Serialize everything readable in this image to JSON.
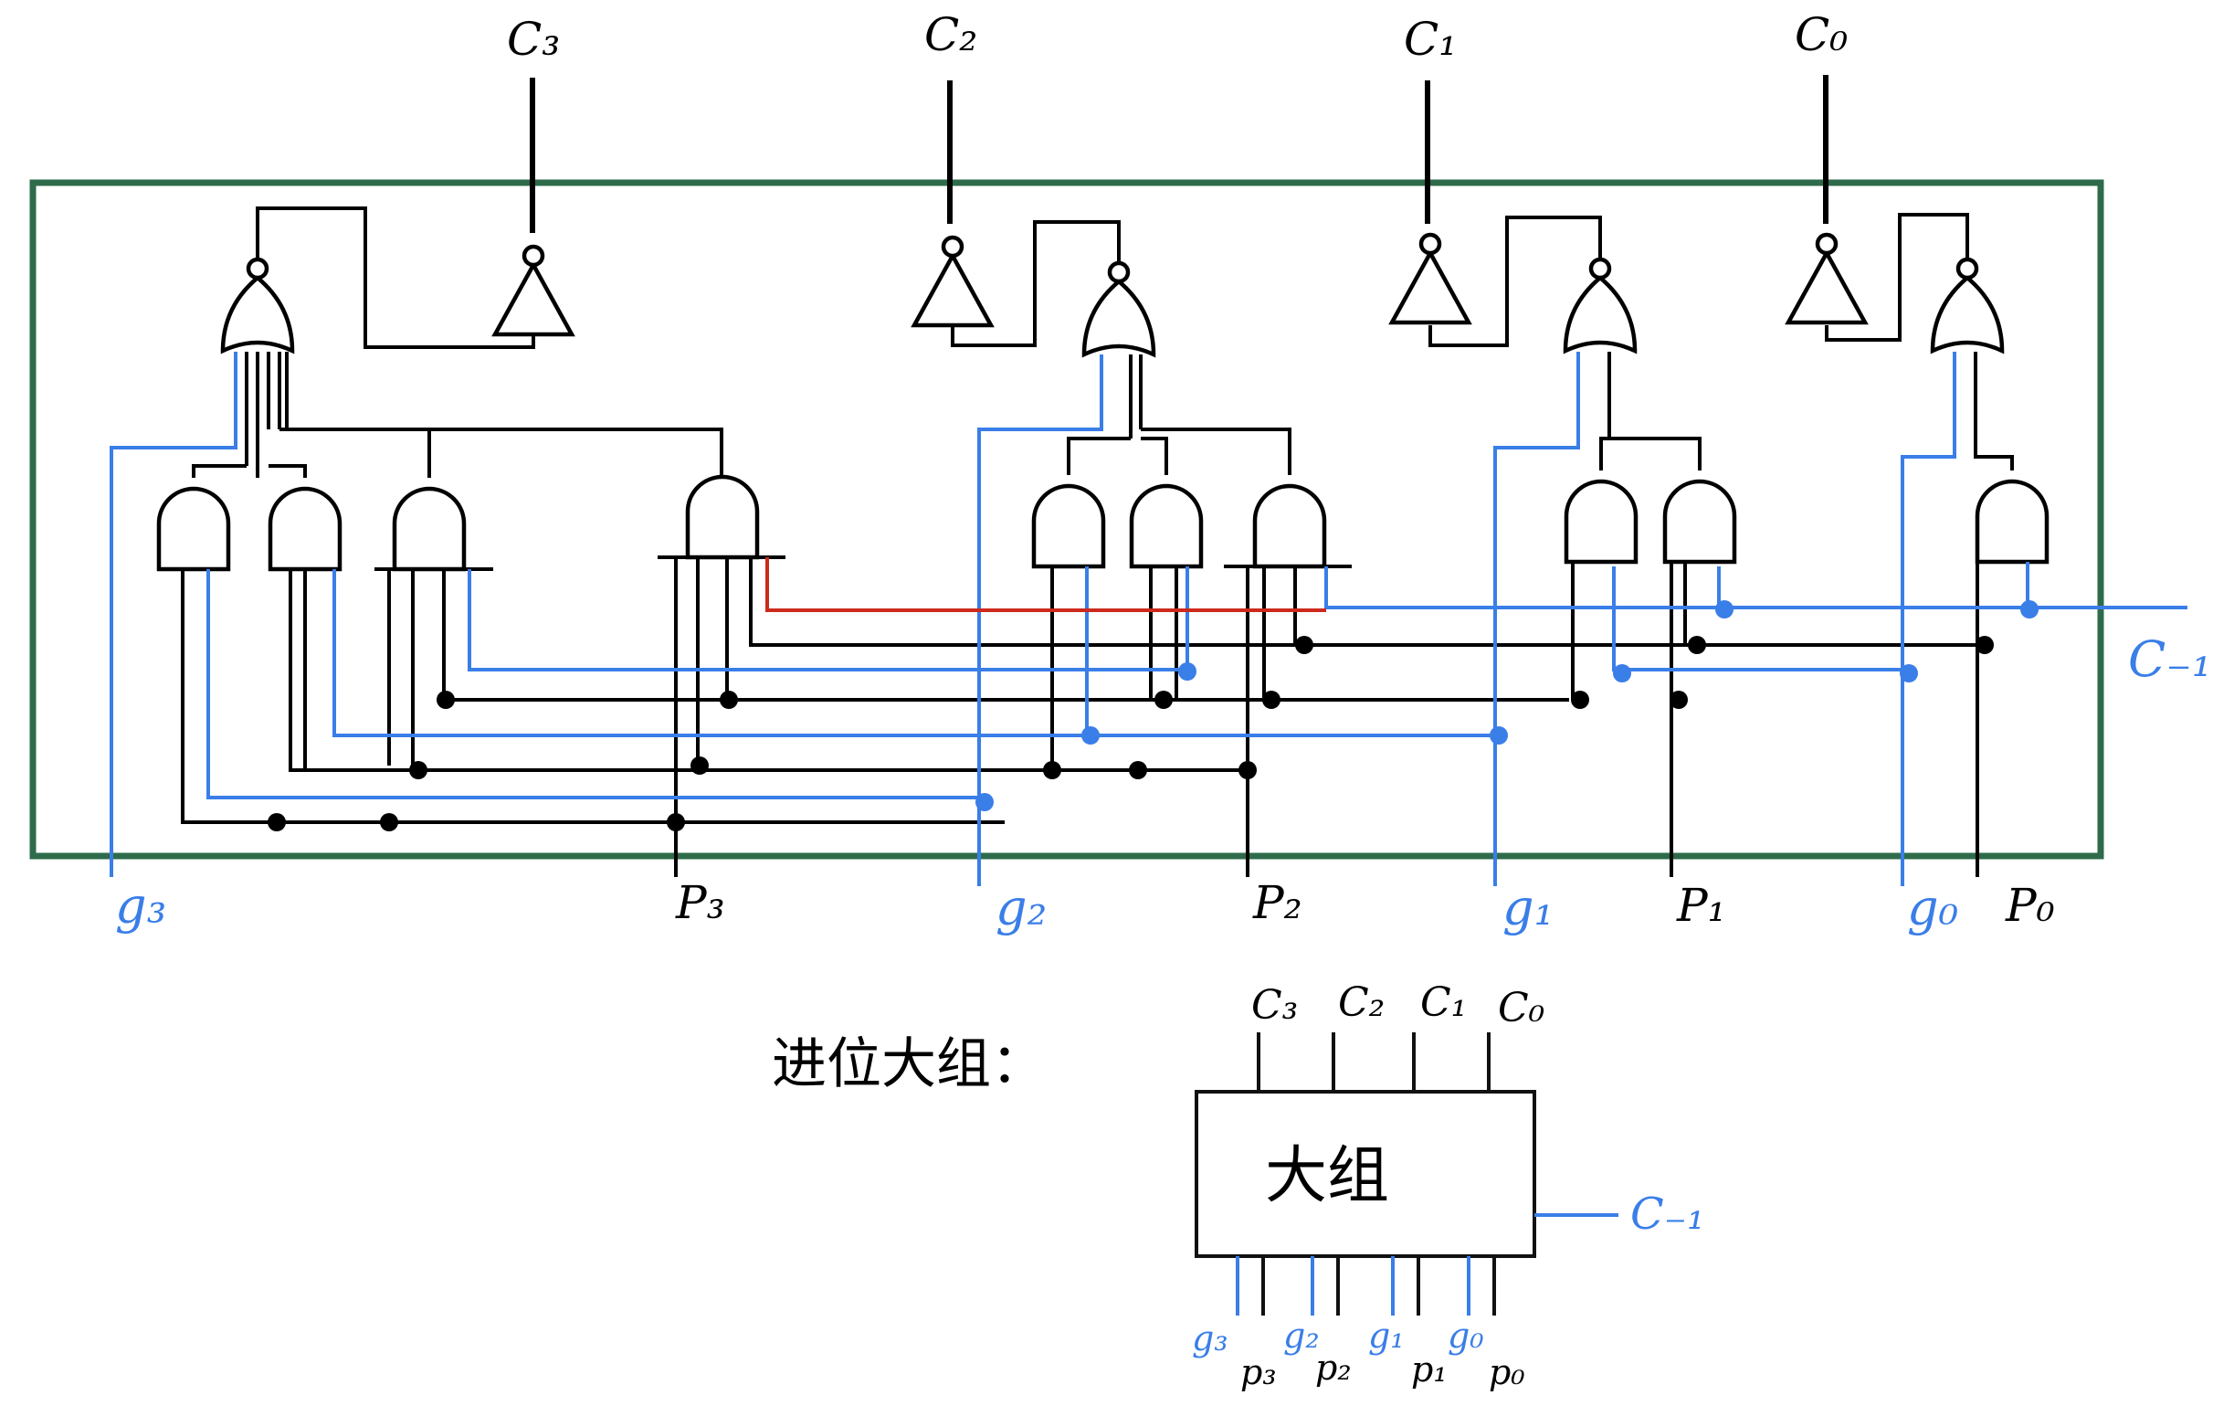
{
  "colors": {
    "frame": "#2e6b4a",
    "wire": "#000000",
    "blue": "#3a7ee8",
    "red": "#cc2a1d",
    "box": "#111111"
  },
  "outputs": {
    "c3": "C₃",
    "c2": "C₂",
    "c1": "C₁",
    "c0": "C₀"
  },
  "inputs": {
    "g3": "g₃",
    "p3": "P₃",
    "g2": "g₂",
    "p2": "P₂",
    "g1": "g₁",
    "p1": "P₁",
    "g0": "g₀",
    "p0": "P₀",
    "cin": "C₋₁"
  },
  "block": {
    "caption": "进位大组：",
    "title": "大组",
    "top_labels": [
      "C₃",
      "C₂",
      "C₁",
      "C₀"
    ],
    "bottom_labels": [
      "g₃",
      "p₃",
      "g₂",
      "p₂",
      "g₁",
      "p₁",
      "g₀",
      "p₀"
    ],
    "cin": "C₋₁"
  }
}
